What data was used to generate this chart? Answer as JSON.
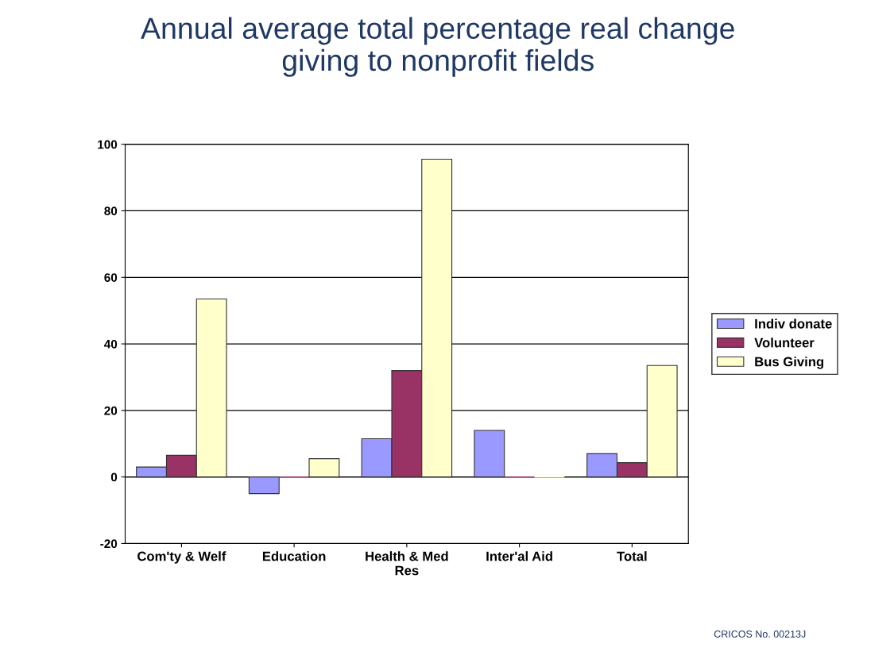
{
  "chart_data": {
    "type": "bar",
    "title": "Annual average total percentage real change\ngiving to nonprofit fields",
    "categories": [
      "Com'ty & Welf",
      "Education",
      "Health & Med\nRes",
      "Inter'al Aid",
      "Total"
    ],
    "series": [
      {
        "name": "Indiv donate",
        "color": "#9999ff",
        "values": [
          3,
          -5,
          11.5,
          14,
          7
        ]
      },
      {
        "name": "Volunteer",
        "color": "#993366",
        "values": [
          6.5,
          0,
          32,
          0,
          4.3
        ]
      },
      {
        "name": "Bus Giving",
        "color": "#ffffcc",
        "values": [
          53.5,
          5.5,
          95.5,
          0,
          33.5
        ]
      }
    ],
    "ylim": [
      -20,
      100
    ],
    "yticks": [
      -20,
      0,
      20,
      40,
      60,
      80,
      100
    ],
    "grid": "y",
    "legend": "right",
    "annotations": [
      "CRICOS No. 00213J"
    ]
  }
}
